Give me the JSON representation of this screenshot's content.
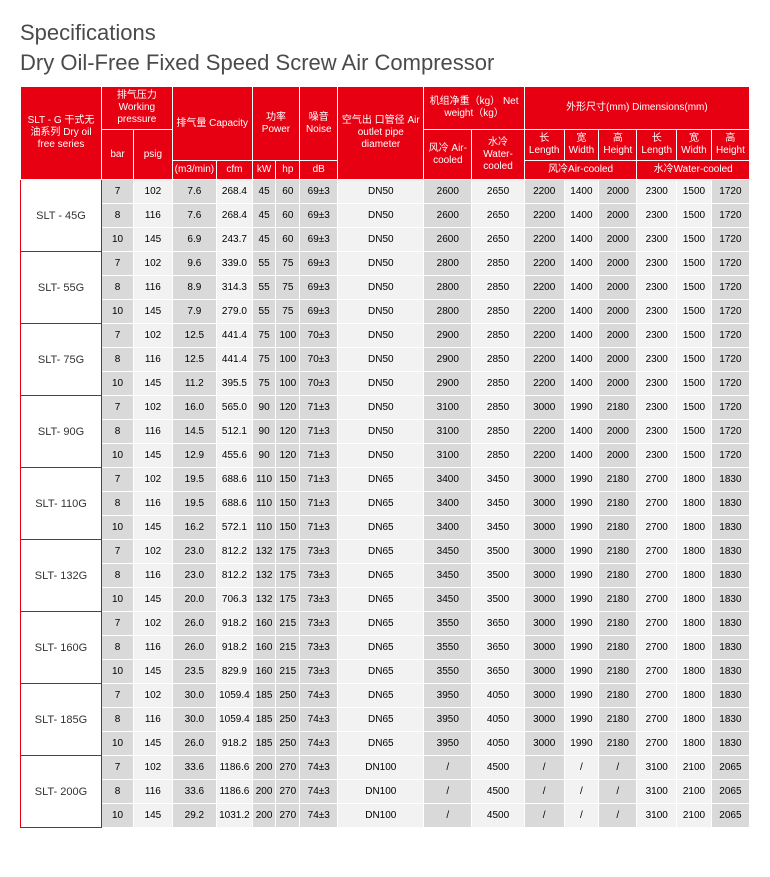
{
  "title1": "Specifications",
  "title2": "Dry Oil-Free Fixed Speed Screw Air Compressor",
  "headers": {
    "model": "SLT - G\n干式无油系列\nDry oil free series",
    "pressure": "排气压力\nWorking\npressure",
    "capacity": "排气量\nCapacity",
    "power": "功率\nPower",
    "noise": "噪音\nNoise",
    "outlet": "空气出\n口管径\nAir outlet\npipe\ndiameter",
    "weight": "机组净重（kg）\nNet weight（kg）",
    "dimensions": "外形尺寸(mm)\nDimensions(mm)",
    "bar": "bar",
    "psig": "psig",
    "m3min": "(m3/min)",
    "cfm": "cfm",
    "kw": "kW",
    "hp": "hp",
    "db": "dB",
    "aircooled": "风冷\nAir- cooled",
    "watercooled": "水冷\nWater- cooled",
    "length": "长\nLength",
    "width": "宽\nWidth",
    "height": "高\nHeight",
    "dimair": "风冷Air-cooled",
    "dimwater": "水冷Water-cooled"
  },
  "rows": [
    {
      "model": "SLT - 45G",
      "data": [
        [
          "7",
          "102",
          "7.6",
          "268.4",
          "45",
          "60",
          "69±3",
          "DN50",
          "2600",
          "2650",
          "2200",
          "1400",
          "2000",
          "2300",
          "1500",
          "1720"
        ],
        [
          "8",
          "116",
          "7.6",
          "268.4",
          "45",
          "60",
          "69±3",
          "DN50",
          "2600",
          "2650",
          "2200",
          "1400",
          "2000",
          "2300",
          "1500",
          "1720"
        ],
        [
          "10",
          "145",
          "6.9",
          "243.7",
          "45",
          "60",
          "69±3",
          "DN50",
          "2600",
          "2650",
          "2200",
          "1400",
          "2000",
          "2300",
          "1500",
          "1720"
        ]
      ]
    },
    {
      "model": "SLT- 55G",
      "data": [
        [
          "7",
          "102",
          "9.6",
          "339.0",
          "55",
          "75",
          "69±3",
          "DN50",
          "2800",
          "2850",
          "2200",
          "1400",
          "2000",
          "2300",
          "1500",
          "1720"
        ],
        [
          "8",
          "116",
          "8.9",
          "314.3",
          "55",
          "75",
          "69±3",
          "DN50",
          "2800",
          "2850",
          "2200",
          "1400",
          "2000",
          "2300",
          "1500",
          "1720"
        ],
        [
          "10",
          "145",
          "7.9",
          "279.0",
          "55",
          "75",
          "69±3",
          "DN50",
          "2800",
          "2850",
          "2200",
          "1400",
          "2000",
          "2300",
          "1500",
          "1720"
        ]
      ]
    },
    {
      "model": "SLT- 75G",
      "data": [
        [
          "7",
          "102",
          "12.5",
          "441.4",
          "75",
          "100",
          "70±3",
          "DN50",
          "2900",
          "2850",
          "2200",
          "1400",
          "2000",
          "2300",
          "1500",
          "1720"
        ],
        [
          "8",
          "116",
          "12.5",
          "441.4",
          "75",
          "100",
          "70±3",
          "DN50",
          "2900",
          "2850",
          "2200",
          "1400",
          "2000",
          "2300",
          "1500",
          "1720"
        ],
        [
          "10",
          "145",
          "11.2",
          "395.5",
          "75",
          "100",
          "70±3",
          "DN50",
          "2900",
          "2850",
          "2200",
          "1400",
          "2000",
          "2300",
          "1500",
          "1720"
        ]
      ]
    },
    {
      "model": "SLT- 90G",
      "data": [
        [
          "7",
          "102",
          "16.0",
          "565.0",
          "90",
          "120",
          "71±3",
          "DN50",
          "3100",
          "2850",
          "3000",
          "1990",
          "2180",
          "2300",
          "1500",
          "1720"
        ],
        [
          "8",
          "116",
          "14.5",
          "512.1",
          "90",
          "120",
          "71±3",
          "DN50",
          "3100",
          "2850",
          "2200",
          "1400",
          "2000",
          "2300",
          "1500",
          "1720"
        ],
        [
          "10",
          "145",
          "12.9",
          "455.6",
          "90",
          "120",
          "71±3",
          "DN50",
          "3100",
          "2850",
          "2200",
          "1400",
          "2000",
          "2300",
          "1500",
          "1720"
        ]
      ]
    },
    {
      "model": "SLT- 110G",
      "data": [
        [
          "7",
          "102",
          "19.5",
          "688.6",
          "110",
          "150",
          "71±3",
          "DN65",
          "3400",
          "3450",
          "3000",
          "1990",
          "2180",
          "2700",
          "1800",
          "1830"
        ],
        [
          "8",
          "116",
          "19.5",
          "688.6",
          "110",
          "150",
          "71±3",
          "DN65",
          "3400",
          "3450",
          "3000",
          "1990",
          "2180",
          "2700",
          "1800",
          "1830"
        ],
        [
          "10",
          "145",
          "16.2",
          "572.1",
          "110",
          "150",
          "71±3",
          "DN65",
          "3400",
          "3450",
          "3000",
          "1990",
          "2180",
          "2700",
          "1800",
          "1830"
        ]
      ]
    },
    {
      "model": "SLT- 132G",
      "data": [
        [
          "7",
          "102",
          "23.0",
          "812.2",
          "132",
          "175",
          "73±3",
          "DN65",
          "3450",
          "3500",
          "3000",
          "1990",
          "2180",
          "2700",
          "1800",
          "1830"
        ],
        [
          "8",
          "116",
          "23.0",
          "812.2",
          "132",
          "175",
          "73±3",
          "DN65",
          "3450",
          "3500",
          "3000",
          "1990",
          "2180",
          "2700",
          "1800",
          "1830"
        ],
        [
          "10",
          "145",
          "20.0",
          "706.3",
          "132",
          "175",
          "73±3",
          "DN65",
          "3450",
          "3500",
          "3000",
          "1990",
          "2180",
          "2700",
          "1800",
          "1830"
        ]
      ]
    },
    {
      "model": "SLT- 160G",
      "data": [
        [
          "7",
          "102",
          "26.0",
          "918.2",
          "160",
          "215",
          "73±3",
          "DN65",
          "3550",
          "3650",
          "3000",
          "1990",
          "2180",
          "2700",
          "1800",
          "1830"
        ],
        [
          "8",
          "116",
          "26.0",
          "918.2",
          "160",
          "215",
          "73±3",
          "DN65",
          "3550",
          "3650",
          "3000",
          "1990",
          "2180",
          "2700",
          "1800",
          "1830"
        ],
        [
          "10",
          "145",
          "23.5",
          "829.9",
          "160",
          "215",
          "73±3",
          "DN65",
          "3550",
          "3650",
          "3000",
          "1990",
          "2180",
          "2700",
          "1800",
          "1830"
        ]
      ]
    },
    {
      "model": "SLT- 185G",
      "data": [
        [
          "7",
          "102",
          "30.0",
          "1059.4",
          "185",
          "250",
          "74±3",
          "DN65",
          "3950",
          "4050",
          "3000",
          "1990",
          "2180",
          "2700",
          "1800",
          "1830"
        ],
        [
          "8",
          "116",
          "30.0",
          "1059.4",
          "185",
          "250",
          "74±3",
          "DN65",
          "3950",
          "4050",
          "3000",
          "1990",
          "2180",
          "2700",
          "1800",
          "1830"
        ],
        [
          "10",
          "145",
          "26.0",
          "918.2",
          "185",
          "250",
          "74±3",
          "DN65",
          "3950",
          "4050",
          "3000",
          "1990",
          "2180",
          "2700",
          "1800",
          "1830"
        ]
      ]
    },
    {
      "model": "SLT- 200G",
      "data": [
        [
          "7",
          "102",
          "33.6",
          "1186.6",
          "200",
          "270",
          "74±3",
          "DN100",
          "/",
          "4500",
          "/",
          "/",
          "/",
          "3100",
          "2100",
          "2065"
        ],
        [
          "8",
          "116",
          "33.6",
          "1186.6",
          "200",
          "270",
          "74±3",
          "DN100",
          "/",
          "4500",
          "/",
          "/",
          "/",
          "3100",
          "2100",
          "2065"
        ],
        [
          "10",
          "145",
          "29.2",
          "1031.2",
          "200",
          "270",
          "74±3",
          "DN100",
          "/",
          "4500",
          "/",
          "/",
          "/",
          "3100",
          "2100",
          "2065"
        ]
      ]
    }
  ],
  "lightColumns": [
    1,
    3,
    7,
    9,
    11,
    13,
    14
  ]
}
